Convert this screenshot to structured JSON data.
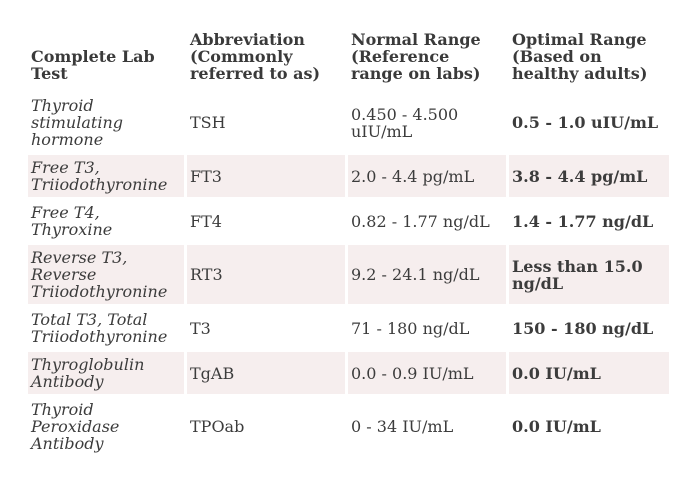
{
  "headers": [
    "Complete Lab Test",
    "Abbreviation (Commonly referred to as)",
    "Normal Range (Reference range on labs)",
    "Optimal Range (Based on healthy adults)"
  ],
  "rows": [
    {
      "test": "Thyroid stimulating hormone",
      "abbr": "TSH",
      "normal": "0.450 - 4.500 uIU/mL",
      "optimal": "0.5 - 1.0 uIU/mL"
    },
    {
      "test": "Free T3, Triiodothyronine",
      "abbr": "FT3",
      "normal": "2.0 - 4.4 pg/mL",
      "optimal": "3.8 - 4.4 pg/mL"
    },
    {
      "test": "Free T4, Thyroxine",
      "abbr": "FT4",
      "normal": "0.82 - 1.77 ng/dL",
      "optimal": "1.4 - 1.77 ng/dL"
    },
    {
      "test": "Reverse T3, Reverse Triiodothyronine",
      "abbr": "RT3",
      "normal": "9.2 - 24.1 ng/dL",
      "optimal": "Less than 15.0 ng/dL"
    },
    {
      "test": "Total T3, Total Triiodothyronine",
      "abbr": "T3",
      "normal": "71 - 180 ng/dL",
      "optimal": "150 - 180 ng/dL"
    },
    {
      "test": "Thyroglobulin Antibody",
      "abbr": "TgAB",
      "normal": "0.0 - 0.9 IU/mL",
      "optimal": "0.0 IU/mL"
    },
    {
      "test": "Thyroid Peroxidase Antibody",
      "abbr": "TPOab",
      "normal": "0 - 34 IU/mL",
      "optimal": "0.0 IU/mL"
    }
  ],
  "colors": {
    "shaded_row": "#f6eeee",
    "text": "#3c3c3c"
  }
}
